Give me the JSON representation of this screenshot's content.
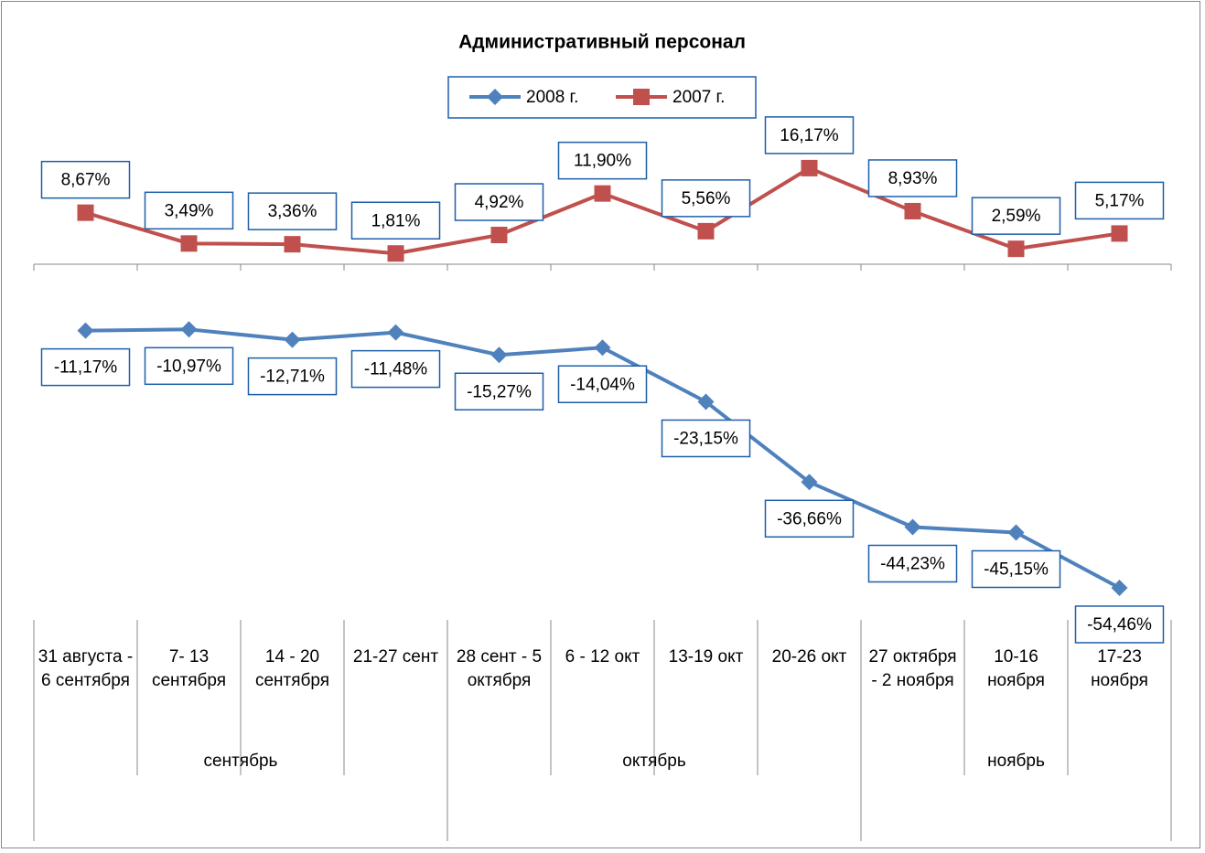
{
  "chart_data": {
    "type": "line",
    "title": "Административный персонал",
    "categories": [
      "31 августа - 6 сентября",
      "7- 13 сентября",
      "14 - 20 сентября",
      "21-27 сент",
      "28 сент - 5 октября",
      "6 - 12 окт",
      "13-19 окт",
      "20-26 окт",
      "27 октября - 2 ноября",
      "10-16 ноября",
      "17-23 ноября"
    ],
    "category_groups": [
      "сентябрь",
      null,
      null,
      null,
      "октябрь",
      null,
      null,
      null,
      "ноябрь",
      null,
      null
    ],
    "series": [
      {
        "name": "2008 г.",
        "color": "#4f81bd",
        "marker": "diamond",
        "values": [
          -11.17,
          -10.97,
          -12.71,
          -11.48,
          -15.27,
          -14.04,
          -23.15,
          -36.66,
          -44.23,
          -45.15,
          -54.46
        ],
        "value_labels": [
          "-11,17%",
          "-10,97%",
          "-12,71%",
          "-11,48%",
          "-15,27%",
          "-14,04%",
          "-23,15%",
          "-36,66%",
          "-44,23%",
          "-45,15%",
          "-54,46%"
        ],
        "label_position": "below"
      },
      {
        "name": "2007 г.",
        "color": "#c0504d",
        "marker": "square",
        "values": [
          8.67,
          3.49,
          3.36,
          1.81,
          4.92,
          11.9,
          5.56,
          16.17,
          8.93,
          2.59,
          5.17
        ],
        "value_labels": [
          "8,67%",
          "3,49%",
          "3,36%",
          "1,81%",
          "4,92%",
          "11,90%",
          "5,56%",
          "16,17%",
          "8,93%",
          "2,59%",
          "5,17%"
        ],
        "label_position": "above"
      }
    ],
    "ylim": [
      -60,
      20
    ],
    "legend": "top"
  }
}
